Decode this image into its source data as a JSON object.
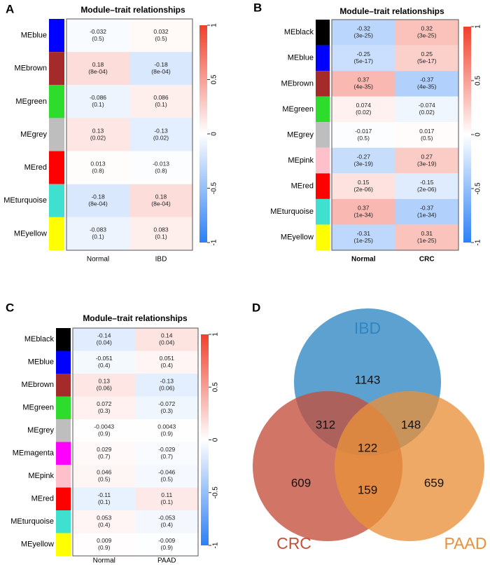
{
  "chart_data": [
    {
      "type": "heatmap",
      "panel": "A",
      "title": "Module–trait relationships",
      "rows": [
        "MEblue",
        "MEbrown",
        "MEgreen",
        "MEgrey",
        "MEred",
        "MEturquoise",
        "MEyellow"
      ],
      "row_colors": [
        "#0000ff",
        "#a52a2a",
        "#2edc2e",
        "#bebebe",
        "#ff0000",
        "#40e0d0",
        "#ffff00"
      ],
      "columns": [
        "Normal",
        "IBD"
      ],
      "values": [
        [
          -0.032,
          0.032
        ],
        [
          0.18,
          -0.18
        ],
        [
          -0.086,
          0.086
        ],
        [
          0.13,
          -0.13
        ],
        [
          0.013,
          -0.013
        ],
        [
          -0.18,
          0.18
        ],
        [
          -0.083,
          0.083
        ]
      ],
      "pvalue_labels": [
        [
          "(0.5)",
          "(0.5)"
        ],
        [
          "(8e-04)",
          "(8e-04)"
        ],
        [
          "(0.1)",
          "(0.1)"
        ],
        [
          "(0.02)",
          "(0.02)"
        ],
        [
          "(0.8)",
          "(0.8)"
        ],
        [
          "(8e-04)",
          "(8e-04)"
        ],
        [
          "(0.1)",
          "(0.1)"
        ]
      ],
      "clim": [
        -1,
        1
      ],
      "cticks": [
        -1,
        -0.5,
        0,
        0.5,
        1
      ],
      "colors": [
        "#2b80f5",
        "#ffffff",
        "#f0402b"
      ]
    },
    {
      "type": "heatmap",
      "panel": "B",
      "title": "Module–trait relationships",
      "rows": [
        "MEblack",
        "MEblue",
        "MEbrown",
        "MEgreen",
        "MEgrey",
        "MEpink",
        "MEred",
        "MEturquoise",
        "MEyellow"
      ],
      "row_colors": [
        "#000000",
        "#0000ff",
        "#a52a2a",
        "#2edc2e",
        "#bebebe",
        "#ffc0cb",
        "#ff0000",
        "#40e0d0",
        "#ffff00"
      ],
      "columns": [
        "Normal",
        "CRC"
      ],
      "values": [
        [
          -0.32,
          0.32
        ],
        [
          -0.25,
          0.25
        ],
        [
          0.37,
          -0.37
        ],
        [
          0.074,
          -0.074
        ],
        [
          -0.017,
          0.017
        ],
        [
          -0.27,
          0.27
        ],
        [
          0.15,
          -0.15
        ],
        [
          0.37,
          -0.37
        ],
        [
          -0.31,
          0.31
        ]
      ],
      "pvalue_labels": [
        [
          "(3e-25)",
          "(3e-25)"
        ],
        [
          "(5e-17)",
          "(5e-17)"
        ],
        [
          "(4e-35)",
          "(4e-35)"
        ],
        [
          "(0.02)",
          "(0.02)"
        ],
        [
          "(0.5)",
          "(0.5)"
        ],
        [
          "(3e-19)",
          "(3e-19)"
        ],
        [
          "(2e-06)",
          "(2e-06)"
        ],
        [
          "(1e-34)",
          "(1e-34)"
        ],
        [
          "(1e-25)",
          "(1e-25)"
        ]
      ],
      "clim": [
        -1,
        1
      ],
      "cticks": [
        -1,
        -0.5,
        0,
        0.5,
        1
      ],
      "colors": [
        "#2b80f5",
        "#ffffff",
        "#f0402b"
      ]
    },
    {
      "type": "heatmap",
      "panel": "C",
      "title": "Module–trait relationships",
      "rows": [
        "MEblack",
        "MEblue",
        "MEbrown",
        "MEgreen",
        "MEgrey",
        "MEmagenta",
        "MEpink",
        "MEred",
        "MEturquoise",
        "MEyellow"
      ],
      "row_colors": [
        "#000000",
        "#0000ff",
        "#a52a2a",
        "#2edc2e",
        "#bebebe",
        "#ff00ff",
        "#ffc0cb",
        "#ff0000",
        "#40e0d0",
        "#ffff00"
      ],
      "columns": [
        "Normal",
        "PAAD"
      ],
      "values": [
        [
          -0.14,
          0.14
        ],
        [
          -0.051,
          0.051
        ],
        [
          0.13,
          -0.13
        ],
        [
          0.072,
          -0.072
        ],
        [
          -0.0043,
          0.0043
        ],
        [
          0.029,
          -0.029
        ],
        [
          0.046,
          -0.046
        ],
        [
          -0.11,
          0.11
        ],
        [
          0.053,
          -0.053
        ],
        [
          0.009,
          -0.009
        ]
      ],
      "pvalue_labels": [
        [
          "(0.04)",
          "(0.04)"
        ],
        [
          "(0.4)",
          "(0.4)"
        ],
        [
          "(0.06)",
          "(0.06)"
        ],
        [
          "(0.3)",
          "(0.3)"
        ],
        [
          "(0.9)",
          "(0.9)"
        ],
        [
          "(0.7)",
          "(0.7)"
        ],
        [
          "(0.5)",
          "(0.5)"
        ],
        [
          "(0.1)",
          "(0.1)"
        ],
        [
          "(0.4)",
          "(0.4)"
        ],
        [
          "(0.9)",
          "(0.9)"
        ]
      ],
      "clim": [
        -1,
        1
      ],
      "cticks": [
        -1,
        -0.5,
        0,
        0.5,
        1
      ],
      "colors": [
        "#2b80f5",
        "#ffffff",
        "#f0402b"
      ]
    },
    {
      "type": "venn",
      "panel": "D",
      "sets": [
        {
          "name": "IBD",
          "color": "#2f86c3"
        },
        {
          "name": "CRC",
          "color": "#c4503c"
        },
        {
          "name": "PAAD",
          "color": "#e8913a"
        }
      ],
      "values": [
        1143,
        312,
        148,
        122,
        609,
        159,
        659
      ]
    }
  ]
}
